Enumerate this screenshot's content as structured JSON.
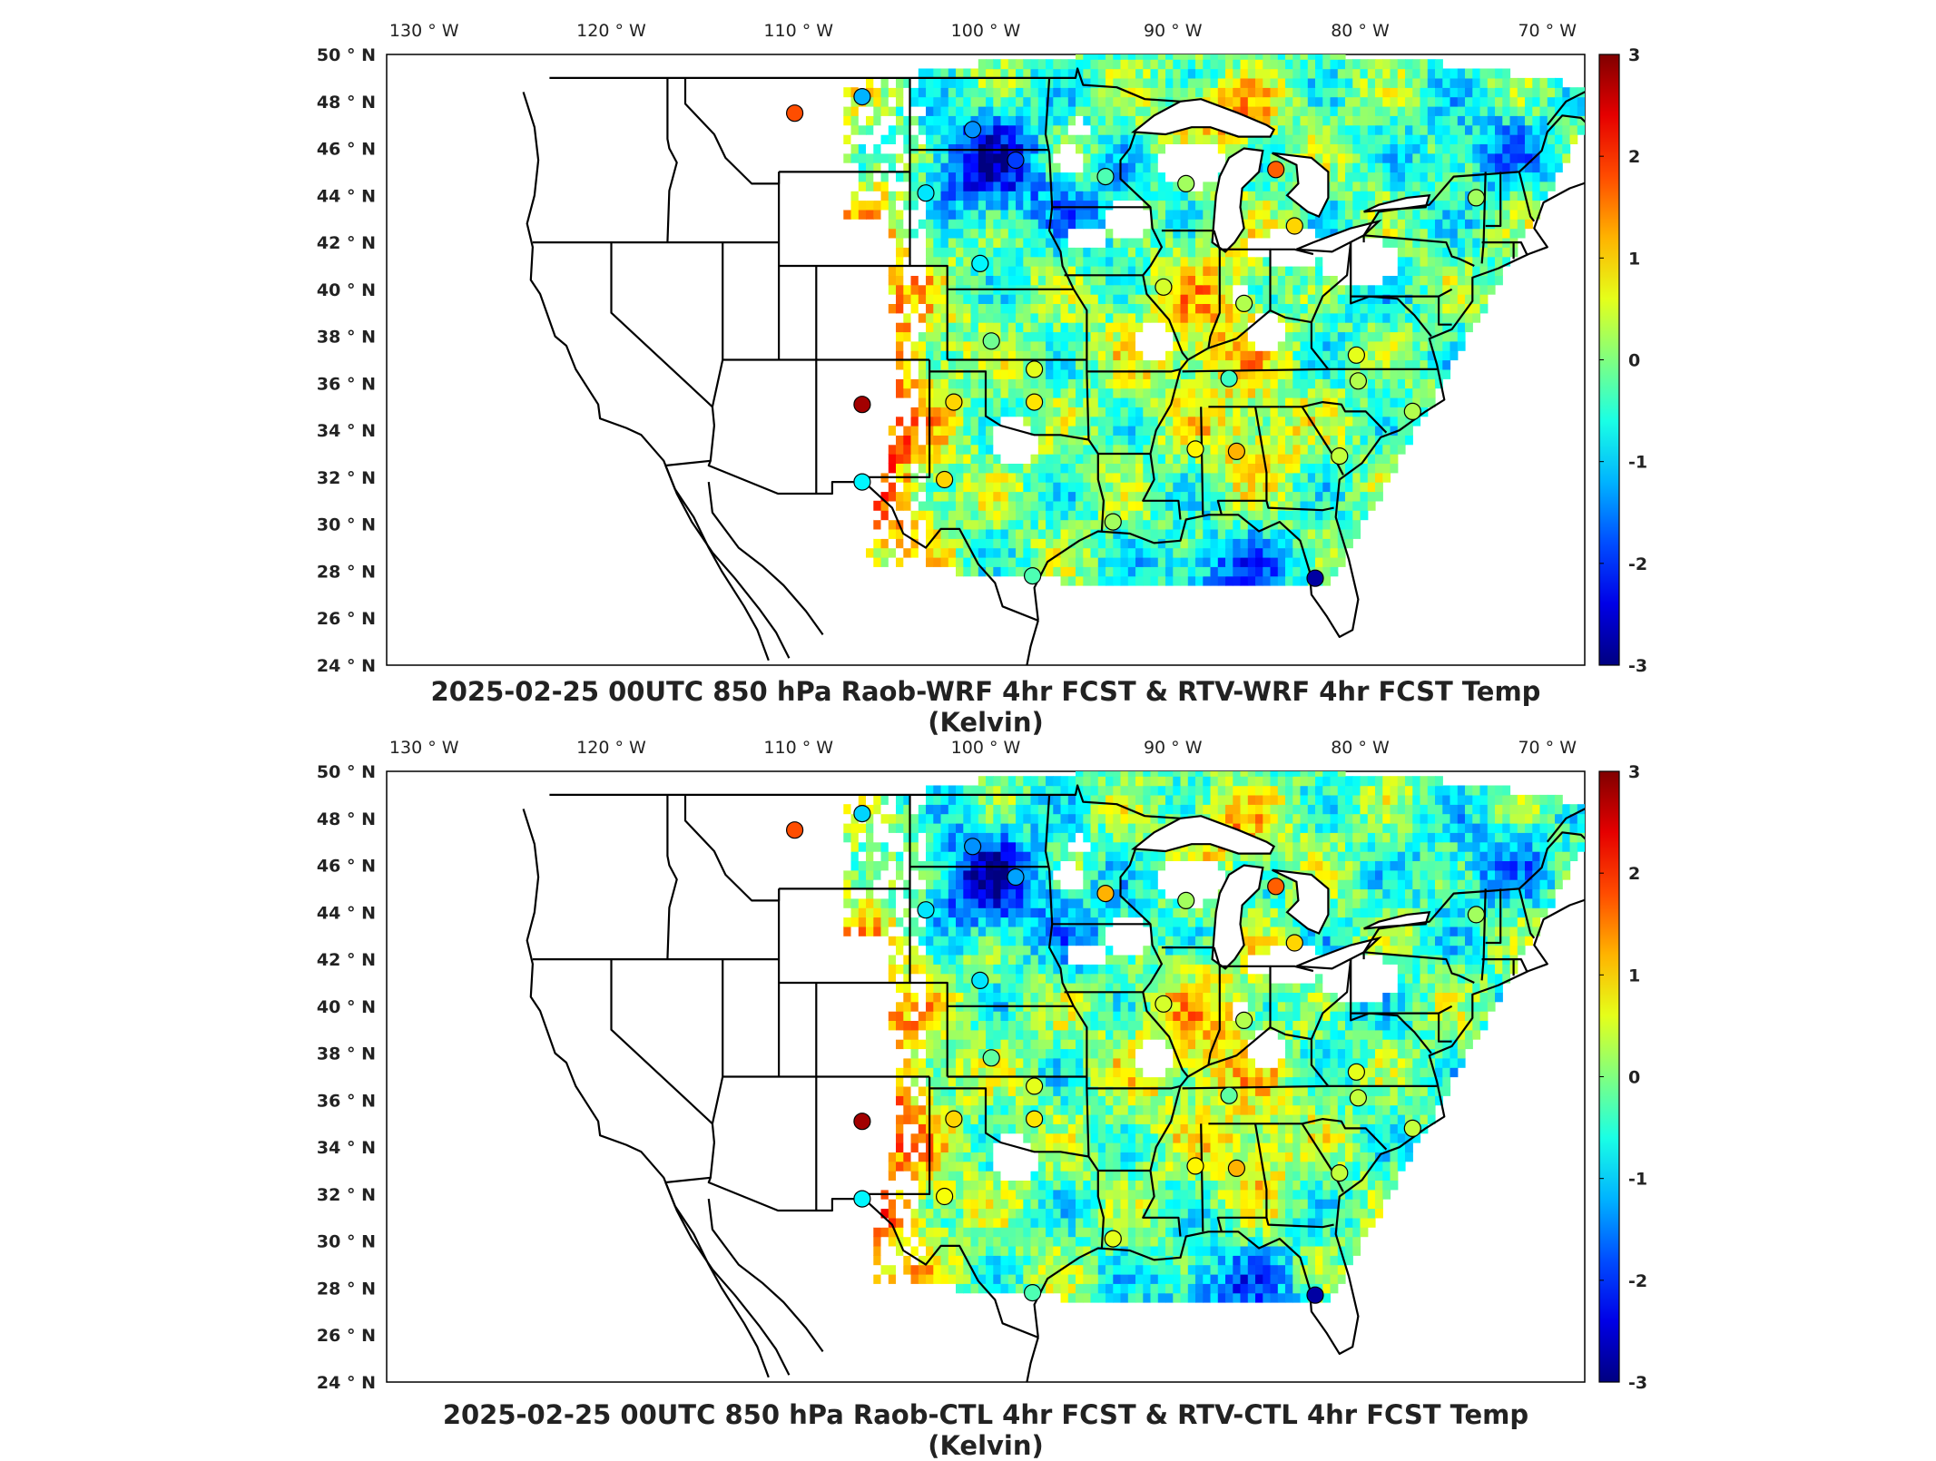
{
  "panels": [
    {
      "id": "top",
      "title": "2025-02-25 00UTC 850 hPa Raob-WRF 4hr FCST & RTV-WRF 4hr FCST Temp (Kelvin)",
      "stations": [
        {
          "lon": -110.2,
          "lat": 47.5,
          "v": 1.8
        },
        {
          "lon": -106.6,
          "lat": 48.2,
          "v": -1.2
        },
        {
          "lon": -100.7,
          "lat": 46.8,
          "v": -1.4
        },
        {
          "lon": -98.4,
          "lat": 45.5,
          "v": -1.9
        },
        {
          "lon": -103.2,
          "lat": 44.1,
          "v": -0.9
        },
        {
          "lon": -93.6,
          "lat": 44.8,
          "v": -0.3
        },
        {
          "lon": -100.3,
          "lat": 41.1,
          "v": -0.8
        },
        {
          "lon": -89.3,
          "lat": 44.5,
          "v": 0.2
        },
        {
          "lon": -84.5,
          "lat": 45.1,
          "v": 1.7
        },
        {
          "lon": -83.5,
          "lat": 42.7,
          "v": 1.0
        },
        {
          "lon": -90.5,
          "lat": 40.1,
          "v": 0.5
        },
        {
          "lon": -86.2,
          "lat": 39.4,
          "v": 0.3
        },
        {
          "lon": -99.7,
          "lat": 37.8,
          "v": -0.1
        },
        {
          "lon": -97.4,
          "lat": 36.6,
          "v": 0.6
        },
        {
          "lon": -101.7,
          "lat": 35.2,
          "v": 1.0
        },
        {
          "lon": -97.4,
          "lat": 35.2,
          "v": 0.9
        },
        {
          "lon": -106.6,
          "lat": 35.1,
          "v": 2.8
        },
        {
          "lon": -87.0,
          "lat": 36.2,
          "v": -0.4
        },
        {
          "lon": -80.2,
          "lat": 37.2,
          "v": 0.6
        },
        {
          "lon": -80.1,
          "lat": 36.1,
          "v": 0.3
        },
        {
          "lon": -106.6,
          "lat": 31.8,
          "v": -0.8
        },
        {
          "lon": -102.2,
          "lat": 31.9,
          "v": 1.0
        },
        {
          "lon": -88.8,
          "lat": 33.2,
          "v": 0.8
        },
        {
          "lon": -86.6,
          "lat": 33.1,
          "v": 1.2
        },
        {
          "lon": -81.1,
          "lat": 32.9,
          "v": 0.4
        },
        {
          "lon": -77.2,
          "lat": 34.8,
          "v": 0.3
        },
        {
          "lon": -93.2,
          "lat": 30.1,
          "v": 0.2
        },
        {
          "lon": -97.5,
          "lat": 27.8,
          "v": -0.3
        },
        {
          "lon": -82.4,
          "lat": 27.7,
          "v": -2.8
        },
        {
          "lon": -73.8,
          "lat": 43.9,
          "v": 0.2
        }
      ]
    },
    {
      "id": "bottom",
      "title": "2025-02-25 00UTC 850 hPa Raob-CTL 4hr FCST & RTV-CTL 4hr FCST Temp (Kelvin)",
      "stations": [
        {
          "lon": -110.2,
          "lat": 47.5,
          "v": 1.8
        },
        {
          "lon": -106.6,
          "lat": 48.2,
          "v": -1.0
        },
        {
          "lon": -100.7,
          "lat": 46.8,
          "v": -1.4
        },
        {
          "lon": -98.4,
          "lat": 45.5,
          "v": -1.3
        },
        {
          "lon": -103.2,
          "lat": 44.1,
          "v": -0.9
        },
        {
          "lon": -93.6,
          "lat": 44.8,
          "v": 1.2
        },
        {
          "lon": -100.3,
          "lat": 41.1,
          "v": -0.9
        },
        {
          "lon": -89.3,
          "lat": 44.5,
          "v": 0.2
        },
        {
          "lon": -84.5,
          "lat": 45.1,
          "v": 1.7
        },
        {
          "lon": -83.5,
          "lat": 42.7,
          "v": 1.0
        },
        {
          "lon": -90.5,
          "lat": 40.1,
          "v": 0.5
        },
        {
          "lon": -86.2,
          "lat": 39.4,
          "v": 0.3
        },
        {
          "lon": -99.7,
          "lat": 37.8,
          "v": -0.2
        },
        {
          "lon": -97.4,
          "lat": 36.6,
          "v": 0.6
        },
        {
          "lon": -101.7,
          "lat": 35.2,
          "v": 1.0
        },
        {
          "lon": -97.4,
          "lat": 35.2,
          "v": 0.9
        },
        {
          "lon": -106.6,
          "lat": 35.1,
          "v": 2.8
        },
        {
          "lon": -87.0,
          "lat": 36.2,
          "v": -0.2
        },
        {
          "lon": -80.2,
          "lat": 37.2,
          "v": 0.6
        },
        {
          "lon": -80.1,
          "lat": 36.1,
          "v": 0.4
        },
        {
          "lon": -106.6,
          "lat": 31.8,
          "v": -0.8
        },
        {
          "lon": -102.2,
          "lat": 31.9,
          "v": 0.7
        },
        {
          "lon": -88.8,
          "lat": 33.2,
          "v": 0.8
        },
        {
          "lon": -86.6,
          "lat": 33.1,
          "v": 1.2
        },
        {
          "lon": -81.1,
          "lat": 32.9,
          "v": 0.4
        },
        {
          "lon": -77.2,
          "lat": 34.8,
          "v": 0.4
        },
        {
          "lon": -93.2,
          "lat": 30.1,
          "v": 0.6
        },
        {
          "lon": -97.5,
          "lat": 27.8,
          "v": -0.3
        },
        {
          "lon": -82.4,
          "lat": 27.7,
          "v": -2.8
        },
        {
          "lon": -73.8,
          "lat": 43.9,
          "v": 0.2
        }
      ]
    }
  ],
  "lon_ticks": [
    {
      "lon": -130,
      "label": "130 ° W"
    },
    {
      "lon": -120,
      "label": "120 ° W"
    },
    {
      "lon": -110,
      "label": "110 ° W"
    },
    {
      "lon": -100,
      "label": "100 ° W"
    },
    {
      "lon": -90,
      "label": "90 ° W"
    },
    {
      "lon": -80,
      "label": "80 ° W"
    },
    {
      "lon": -70,
      "label": "70 ° W"
    }
  ],
  "lat_ticks": [
    {
      "lat": 50,
      "label": "50 ° N"
    },
    {
      "lat": 48,
      "label": "48 ° N"
    },
    {
      "lat": 46,
      "label": "46 ° N"
    },
    {
      "lat": 44,
      "label": "44 ° N"
    },
    {
      "lat": 42,
      "label": "42 ° N"
    },
    {
      "lat": 40,
      "label": "40 ° N"
    },
    {
      "lat": 38,
      "label": "38 ° N"
    },
    {
      "lat": 36,
      "label": "36 ° N"
    },
    {
      "lat": 34,
      "label": "34 ° N"
    },
    {
      "lat": 32,
      "label": "32 ° N"
    },
    {
      "lat": 30,
      "label": "30 ° N"
    },
    {
      "lat": 28,
      "label": "28 ° N"
    },
    {
      "lat": 26,
      "label": "26 ° N"
    },
    {
      "lat": 24,
      "label": "24 ° N"
    }
  ],
  "colorbar": {
    "min": -3,
    "max": 3,
    "ticks": [
      {
        "v": 3,
        "label": "3"
      },
      {
        "v": 2,
        "label": "2"
      },
      {
        "v": 1,
        "label": "1"
      },
      {
        "v": 0,
        "label": "0"
      },
      {
        "v": -1,
        "label": "-1"
      },
      {
        "v": -2,
        "label": "-2"
      },
      {
        "v": -3,
        "label": "-3"
      }
    ],
    "colormap": "jet"
  },
  "colors": {
    "coastline": "#000000",
    "frame": "#000000",
    "missing": "#ffffff"
  }
}
